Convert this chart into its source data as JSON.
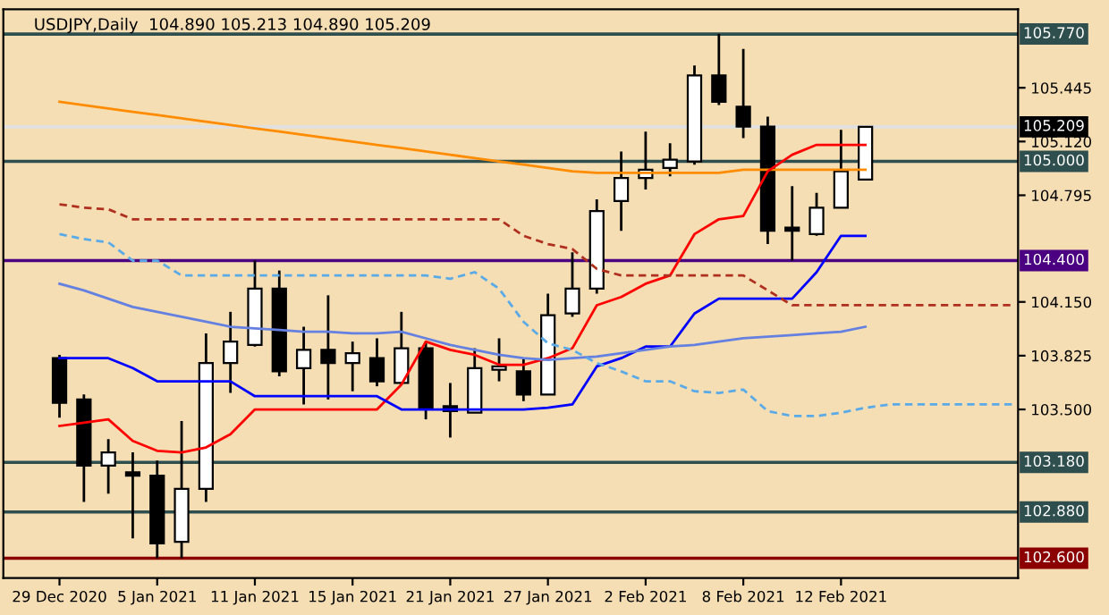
{
  "chart_data": {
    "type": "candlestick",
    "title": "USDJPY,Daily  104.890 105.213 104.890 105.209",
    "categories": [
      "29 Dec 2020",
      null,
      null,
      null,
      "5 Jan 2021",
      null,
      null,
      null,
      "11 Jan 2021",
      null,
      null,
      null,
      "15 Jan 2021",
      null,
      null,
      null,
      "21 Jan 2021",
      null,
      null,
      null,
      "27 Jan 2021",
      null,
      null,
      null,
      "2 Feb 2021",
      null,
      null,
      null,
      "8 Feb 2021",
      null,
      null,
      null,
      "12 Feb 2021",
      null,
      null,
      null,
      null,
      null,
      null,
      null
    ],
    "ohlc": [
      [
        103.81,
        103.83,
        103.45,
        103.54
      ],
      [
        103.56,
        103.59,
        102.94,
        103.16
      ],
      [
        103.16,
        103.32,
        102.99,
        103.24
      ],
      [
        103.12,
        103.24,
        102.72,
        103.1
      ],
      [
        103.1,
        103.19,
        102.6,
        102.69
      ],
      [
        102.7,
        103.43,
        102.6,
        103.02
      ],
      [
        103.02,
        103.96,
        102.94,
        103.78
      ],
      [
        103.78,
        104.09,
        103.6,
        103.91
      ],
      [
        103.89,
        104.4,
        103.88,
        104.23
      ],
      [
        104.23,
        104.34,
        103.7,
        103.73
      ],
      [
        103.75,
        104.0,
        103.53,
        103.86
      ],
      [
        103.86,
        104.19,
        103.56,
        103.78
      ],
      [
        103.78,
        103.91,
        103.61,
        103.84
      ],
      [
        103.81,
        103.93,
        103.64,
        103.67
      ],
      [
        103.66,
        104.09,
        103.65,
        103.87
      ],
      [
        103.87,
        103.91,
        103.44,
        103.51
      ],
      [
        103.52,
        103.66,
        103.33,
        103.49
      ],
      [
        103.48,
        103.87,
        103.48,
        103.75
      ],
      [
        103.74,
        103.93,
        103.67,
        103.76
      ],
      [
        103.73,
        103.81,
        103.55,
        103.59
      ],
      [
        103.59,
        104.2,
        103.59,
        104.07
      ],
      [
        104.08,
        104.45,
        104.06,
        104.23
      ],
      [
        104.23,
        104.77,
        104.2,
        104.7
      ],
      [
        104.76,
        105.06,
        104.58,
        104.9
      ],
      [
        104.9,
        105.18,
        104.83,
        104.95
      ],
      [
        104.96,
        105.11,
        104.91,
        105.01
      ],
      [
        105.0,
        105.58,
        104.98,
        105.52
      ],
      [
        105.52,
        105.77,
        105.34,
        105.36
      ],
      [
        105.33,
        105.68,
        105.14,
        105.21
      ],
      [
        105.21,
        105.27,
        104.5,
        104.58
      ],
      [
        104.6,
        104.85,
        104.4,
        104.58
      ],
      [
        104.56,
        104.81,
        104.55,
        104.72
      ],
      [
        104.72,
        105.19,
        104.72,
        104.94
      ],
      [
        104.89,
        105.213,
        104.89,
        105.209
      ],
      null,
      null,
      null,
      null,
      null,
      null
    ],
    "series": [
      {
        "type": "line",
        "color": "#ff8c00",
        "line_style": "solid",
        "values": [
          105.36,
          105.34,
          105.32,
          105.3,
          105.28,
          105.26,
          105.24,
          105.22,
          105.2,
          105.18,
          105.16,
          105.14,
          105.12,
          105.1,
          105.08,
          105.06,
          105.04,
          105.02,
          105.0,
          104.98,
          104.96,
          104.94,
          104.93,
          104.93,
          104.93,
          104.93,
          104.93,
          104.93,
          104.95,
          104.95,
          104.95,
          104.95,
          104.95,
          104.95,
          null,
          null,
          null,
          null,
          null,
          null
        ]
      },
      {
        "type": "line",
        "color": "#ff0000",
        "line_style": "solid",
        "values": [
          103.4,
          103.42,
          103.44,
          103.31,
          103.25,
          103.24,
          103.27,
          103.35,
          103.5,
          103.5,
          103.5,
          103.5,
          103.5,
          103.5,
          103.65,
          103.91,
          103.86,
          103.83,
          103.77,
          103.77,
          103.81,
          103.87,
          104.13,
          104.18,
          104.26,
          104.31,
          104.56,
          104.65,
          104.67,
          104.94,
          105.04,
          105.1,
          105.1,
          105.1,
          null,
          null,
          null,
          null,
          null,
          null
        ]
      },
      {
        "type": "line",
        "color": "#0000ff",
        "line_style": "solid",
        "values": [
          103.81,
          103.81,
          103.81,
          103.75,
          103.67,
          103.67,
          103.67,
          103.67,
          103.58,
          103.58,
          103.58,
          103.58,
          103.58,
          103.58,
          103.5,
          103.5,
          103.5,
          103.5,
          103.5,
          103.5,
          103.51,
          103.53,
          103.76,
          103.81,
          103.88,
          103.88,
          104.08,
          104.17,
          104.17,
          104.17,
          104.17,
          104.33,
          104.55,
          104.55,
          null,
          null,
          null,
          null,
          null,
          null
        ]
      },
      {
        "type": "line",
        "color": "#6480e0",
        "line_style": "solid",
        "values": [
          104.26,
          104.22,
          104.17,
          104.12,
          104.09,
          104.06,
          104.03,
          104.0,
          103.99,
          103.98,
          103.97,
          103.97,
          103.96,
          103.96,
          103.97,
          103.93,
          103.89,
          103.86,
          103.83,
          103.81,
          103.8,
          103.81,
          103.82,
          103.84,
          103.86,
          103.88,
          103.89,
          103.91,
          103.93,
          103.94,
          103.95,
          103.96,
          103.97,
          104.0,
          null,
          null,
          null,
          null,
          null,
          null
        ]
      },
      {
        "type": "line",
        "color": "#b03020",
        "line_style": "dashed",
        "values": [
          104.74,
          104.72,
          104.71,
          104.65,
          104.65,
          104.65,
          104.65,
          104.65,
          104.65,
          104.65,
          104.65,
          104.65,
          104.65,
          104.65,
          104.65,
          104.65,
          104.65,
          104.65,
          104.65,
          104.55,
          104.5,
          104.47,
          104.35,
          104.31,
          104.31,
          104.31,
          104.31,
          104.31,
          104.31,
          104.22,
          104.13,
          104.13,
          104.13,
          104.13,
          104.13,
          104.13,
          104.13,
          104.13,
          104.13,
          104.13
        ]
      },
      {
        "type": "line",
        "color": "#5aaae8",
        "line_style": "dashed",
        "values": [
          104.56,
          104.53,
          104.51,
          104.4,
          104.4,
          104.31,
          104.31,
          104.31,
          104.31,
          104.31,
          104.31,
          104.31,
          104.31,
          104.31,
          104.31,
          104.31,
          104.29,
          104.33,
          104.23,
          104.03,
          103.9,
          103.86,
          103.78,
          103.73,
          103.67,
          103.67,
          103.61,
          103.6,
          103.62,
          103.49,
          103.46,
          103.46,
          103.48,
          103.51,
          103.53,
          103.53,
          103.53,
          103.53,
          103.53,
          103.53
        ]
      }
    ],
    "ylim": [
      102.48,
      105.92
    ],
    "yticks": [
      105.445,
      {
        "value": 105.12,
        "label": "105.120"
      },
      104.795,
      {
        "value": 104.15,
        "label": "104.150"
      },
      103.825,
      {
        "value": 103.5,
        "label": "103.500"
      }
    ],
    "ref_lines": [
      {
        "axis": "y",
        "value": 105.77,
        "label": "105.770",
        "color": "#2f4f4f"
      },
      {
        "axis": "y",
        "value": 105.209,
        "label": "105.209",
        "color": "#e0e0e0"
      },
      {
        "axis": "y",
        "value": 105.0,
        "label": "105.000",
        "color": "#2f4f4f"
      },
      {
        "axis": "y",
        "value": 104.4,
        "label": "104.400",
        "color": "#4b0082"
      },
      {
        "axis": "y",
        "value": 103.18,
        "label": "103.180",
        "color": "#2f4f4f"
      },
      {
        "axis": "y",
        "value": 102.88,
        "label": "102.880",
        "color": "#2f4f4f"
      },
      {
        "axis": "y",
        "value": 102.6,
        "label": "102.600",
        "color": "#8b0000"
      }
    ],
    "grid": false,
    "legend": false
  }
}
